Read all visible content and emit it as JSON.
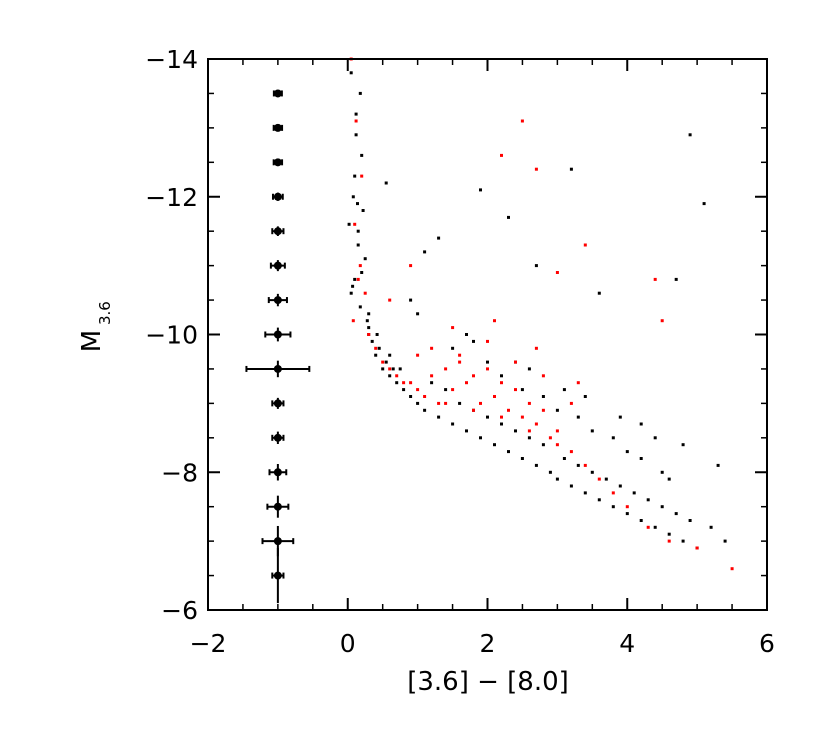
{
  "chart_data": {
    "type": "scatter",
    "title": "",
    "xlabel": "[3.6] − [8.0]",
    "ylabel_main": "M",
    "ylabel_sub": "3.6",
    "xlim": [
      -2,
      6
    ],
    "ylim": [
      -6,
      -14
    ],
    "y_inverted": true,
    "x_ticks": [
      -2,
      0,
      2,
      4,
      6
    ],
    "x_tick_labels": [
      "−2",
      "0",
      "2",
      "4",
      "6"
    ],
    "y_ticks": [
      -14,
      -12,
      -10,
      -8,
      -6
    ],
    "y_tick_labels": [
      "−14",
      "−12",
      "−10",
      "−8",
      "−6"
    ],
    "grid": false,
    "legend": "none",
    "series_colors": [
      "#000000",
      "#ff0000"
    ],
    "error_bars": {
      "x": -1,
      "points": [
        {
          "y": -13.5,
          "xerr": 0.05,
          "yerr": 0.05
        },
        {
          "y": -13.0,
          "xerr": 0.06,
          "yerr": 0.05
        },
        {
          "y": -12.5,
          "xerr": 0.06,
          "yerr": 0.05
        },
        {
          "y": -12.0,
          "xerr": 0.07,
          "yerr": 0.06
        },
        {
          "y": -11.5,
          "xerr": 0.08,
          "yerr": 0.07
        },
        {
          "y": -11.0,
          "xerr": 0.1,
          "yerr": 0.08
        },
        {
          "y": -10.5,
          "xerr": 0.13,
          "yerr": 0.09
        },
        {
          "y": -10.0,
          "xerr": 0.18,
          "yerr": 0.1
        },
        {
          "y": -9.5,
          "xerr": 0.45,
          "yerr": 0.12
        },
        {
          "y": -9.0,
          "xerr": 0.08,
          "yerr": 0.08
        },
        {
          "y": -8.5,
          "xerr": 0.08,
          "yerr": 0.09
        },
        {
          "y": -8.0,
          "xerr": 0.12,
          "yerr": 0.12
        },
        {
          "y": -7.5,
          "xerr": 0.15,
          "yerr": 0.16
        },
        {
          "y": -7.0,
          "xerr": 0.22,
          "yerr": 0.22
        },
        {
          "y": -6.5,
          "xerr": 0.08,
          "yerr": 0.4
        }
      ]
    },
    "series": [
      {
        "color": "#000000",
        "x": [
          0.05,
          0.12,
          0.2,
          0.08,
          0.15,
          0.25,
          0.1,
          0.18,
          0.3,
          0.05,
          0.22,
          0.12,
          0.28,
          0.35,
          0.15,
          0.4,
          0.2,
          0.5,
          0.3,
          0.6,
          0.45,
          0.7,
          0.55,
          0.8,
          0.65,
          0.9,
          1.0,
          1.1,
          1.2,
          1.3,
          1.4,
          1.5,
          1.6,
          1.7,
          1.8,
          1.9,
          2.0,
          2.1,
          2.2,
          2.3,
          2.4,
          2.5,
          2.6,
          2.7,
          2.8,
          2.9,
          3.0,
          3.1,
          3.2,
          3.3,
          3.4,
          3.5,
          3.6,
          3.7,
          3.8,
          3.9,
          4.0,
          4.1,
          4.2,
          4.3,
          4.4,
          4.5,
          4.6,
          4.7,
          4.8,
          4.9,
          5.0,
          5.2,
          5.4,
          2.0,
          2.5,
          3.0,
          3.5,
          4.0,
          4.5,
          1.5,
          2.2,
          2.8,
          3.3,
          3.8,
          4.2,
          4.6,
          1.0,
          1.8,
          2.6,
          3.4,
          4.2,
          4.8,
          5.3,
          0.9,
          1.7,
          2.4,
          3.1,
          3.9,
          4.4,
          0.02,
          0.1,
          0.18,
          0.07,
          0.14,
          0.3,
          0.42,
          0.6,
          0.75,
          1.3,
          1.9,
          2.7,
          3.6,
          4.7,
          5.1,
          3.2,
          4.9,
          2.3,
          1.1,
          0.55
        ],
        "y": [
          -13.8,
          -13.2,
          -12.6,
          -12.0,
          -11.5,
          -11.1,
          -10.8,
          -10.4,
          -10.0,
          -10.6,
          -11.8,
          -12.9,
          -10.2,
          -9.9,
          -11.3,
          -9.7,
          -10.9,
          -9.5,
          -10.1,
          -9.4,
          -9.8,
          -9.3,
          -9.6,
          -9.2,
          -9.5,
          -9.1,
          -9.0,
          -8.9,
          -9.3,
          -8.8,
          -9.2,
          -8.7,
          -9.0,
          -8.6,
          -8.9,
          -8.5,
          -8.8,
          -8.4,
          -8.7,
          -8.3,
          -8.6,
          -8.2,
          -8.5,
          -8.1,
          -8.4,
          -8.0,
          -7.9,
          -8.2,
          -7.8,
          -8.1,
          -7.7,
          -8.0,
          -7.6,
          -7.9,
          -7.5,
          -7.8,
          -7.4,
          -7.7,
          -7.3,
          -7.6,
          -7.2,
          -7.5,
          -7.1,
          -7.4,
          -7.0,
          -7.3,
          -6.9,
          -7.2,
          -7.0,
          -9.6,
          -9.2,
          -8.9,
          -8.6,
          -8.3,
          -8.0,
          -9.8,
          -9.4,
          -9.1,
          -8.8,
          -8.5,
          -8.2,
          -7.9,
          -10.3,
          -9.9,
          -9.5,
          -9.1,
          -8.7,
          -8.4,
          -8.1,
          -10.5,
          -10.0,
          -9.6,
          -9.2,
          -8.8,
          -8.5,
          -11.6,
          -12.3,
          -13.5,
          -10.7,
          -11.9,
          -10.3,
          -10.0,
          -9.7,
          -9.5,
          -11.4,
          -12.1,
          -11.0,
          -10.6,
          -10.8,
          -11.9,
          -12.4,
          -12.9,
          -11.7,
          -11.2,
          -12.2
        ]
      },
      {
        "color": "#ff0000",
        "x": [
          0.05,
          0.12,
          0.2,
          0.1,
          0.18,
          0.25,
          0.08,
          0.15,
          0.3,
          0.4,
          0.5,
          0.6,
          0.7,
          0.8,
          0.9,
          1.0,
          1.1,
          1.2,
          1.3,
          1.4,
          1.5,
          1.6,
          1.7,
          1.8,
          1.9,
          2.0,
          2.1,
          2.2,
          2.3,
          2.4,
          2.5,
          2.6,
          2.7,
          2.8,
          2.9,
          3.0,
          3.2,
          3.4,
          3.6,
          3.8,
          4.0,
          4.3,
          4.6,
          5.0,
          5.5,
          1.2,
          1.6,
          2.0,
          2.4,
          2.8,
          3.2,
          1.4,
          1.8,
          2.2,
          2.6,
          3.0,
          1.0,
          1.5,
          2.1,
          2.7,
          3.3,
          0.6,
          0.9,
          2.5,
          2.7,
          3.0,
          3.4,
          4.4,
          4.5,
          2.2
        ],
        "y": [
          -14.0,
          -13.1,
          -12.3,
          -11.6,
          -11.0,
          -10.6,
          -10.2,
          -10.8,
          -10.0,
          -9.8,
          -9.6,
          -9.5,
          -9.4,
          -9.3,
          -9.3,
          -9.2,
          -9.1,
          -9.4,
          -9.0,
          -9.5,
          -9.2,
          -9.6,
          -9.3,
          -9.4,
          -9.0,
          -9.5,
          -9.1,
          -9.3,
          -8.9,
          -9.2,
          -8.8,
          -9.0,
          -8.7,
          -8.9,
          -8.5,
          -8.6,
          -8.3,
          -8.1,
          -7.9,
          -7.7,
          -7.5,
          -7.2,
          -7.0,
          -6.9,
          -6.6,
          -9.8,
          -9.7,
          -9.9,
          -9.6,
          -9.4,
          -9.0,
          -9.0,
          -8.9,
          -8.8,
          -8.6,
          -8.4,
          -9.7,
          -10.1,
          -10.2,
          -9.8,
          -9.3,
          -10.5,
          -11.0,
          -13.1,
          -12.4,
          -10.9,
          -11.3,
          -10.8,
          -10.2,
          -12.6
        ]
      }
    ]
  }
}
